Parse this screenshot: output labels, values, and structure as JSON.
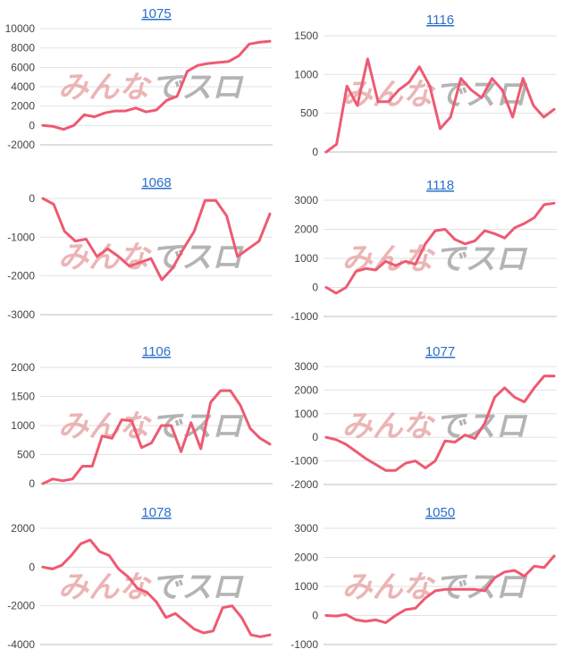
{
  "colors": {
    "line": "#ee5a72",
    "title": "#2a6fc9",
    "grid": "#e2e2e2",
    "text": "#444444"
  },
  "watermark": {
    "part_a": "みんな",
    "part_b": "でスロ"
  },
  "chart_data": [
    {
      "type": "line",
      "title": "1075",
      "ylim": [
        -2000,
        10000
      ],
      "yticks": [
        10000,
        8000,
        6000,
        4000,
        2000,
        0,
        -2000
      ],
      "tick_labels": [
        "10000",
        "8000",
        "6000",
        "4000",
        "2000",
        "0",
        "-2000"
      ],
      "values": [
        0,
        -100,
        -400,
        0,
        1100,
        900,
        1300,
        1500,
        1500,
        1800,
        1400,
        1600,
        2600,
        3000,
        5600,
        6200,
        6400,
        6500,
        6600,
        7200,
        8400,
        8600,
        8700
      ]
    },
    {
      "type": "line",
      "title": "1116",
      "ylim": [
        0,
        1500
      ],
      "yticks": [
        1500,
        1000,
        500,
        0
      ],
      "tick_labels": [
        "1500",
        "1000",
        "500",
        "0"
      ],
      "values": [
        0,
        100,
        850,
        600,
        1200,
        650,
        650,
        800,
        900,
        1100,
        850,
        300,
        450,
        950,
        800,
        700,
        950,
        800,
        450,
        950,
        600,
        450,
        550
      ]
    },
    {
      "type": "line",
      "title": "1068",
      "ylim": [
        -3000,
        0
      ],
      "yticks": [
        0,
        -1000,
        -2000,
        -3000
      ],
      "tick_labels": [
        "0",
        "-1000",
        "-2000",
        "-3000"
      ],
      "values": [
        0,
        -150,
        -850,
        -1100,
        -1050,
        -1500,
        -1300,
        -1500,
        -1750,
        -1650,
        -1550,
        -2100,
        -1800,
        -1300,
        -850,
        -50,
        -50,
        -450,
        -1500,
        -1300,
        -1100,
        -400
      ]
    },
    {
      "type": "line",
      "title": "1118",
      "ylim": [
        -1000,
        3000
      ],
      "yticks": [
        3000,
        2000,
        1000,
        0,
        -1000
      ],
      "tick_labels": [
        "3000",
        "2000",
        "1000",
        "0",
        "-1000"
      ],
      "values": [
        0,
        -200,
        0,
        550,
        650,
        600,
        900,
        750,
        900,
        800,
        1500,
        1950,
        2000,
        1650,
        1500,
        1600,
        1950,
        1850,
        1700,
        2050,
        2200,
        2400,
        2850,
        2900
      ]
    },
    {
      "type": "line",
      "title": "1106",
      "ylim": [
        0,
        2000
      ],
      "yticks": [
        2000,
        1500,
        1000,
        500,
        0
      ],
      "tick_labels": [
        "2000",
        "1500",
        "1000",
        "500",
        "0"
      ],
      "values": [
        0,
        80,
        50,
        80,
        300,
        300,
        820,
        780,
        1100,
        1080,
        620,
        700,
        1000,
        1000,
        550,
        1050,
        600,
        1400,
        1600,
        1600,
        1350,
        950,
        780,
        680
      ]
    },
    {
      "type": "line",
      "title": "1077",
      "ylim": [
        -2000,
        3000
      ],
      "yticks": [
        3000,
        2000,
        1000,
        0,
        -1000,
        -2000
      ],
      "tick_labels": [
        "3000",
        "2000",
        "1000",
        "0",
        "-1000",
        "-2000"
      ],
      "values": [
        0,
        -100,
        -300,
        -600,
        -900,
        -1150,
        -1400,
        -1400,
        -1100,
        -1000,
        -1300,
        -1000,
        -150,
        -200,
        100,
        -50,
        600,
        1700,
        2100,
        1700,
        1500,
        2100,
        2600,
        2600
      ]
    },
    {
      "type": "line",
      "title": "1078",
      "ylim": [
        -4000,
        2000
      ],
      "yticks": [
        2000,
        0,
        -2000,
        -4000
      ],
      "tick_labels": [
        "2000",
        "0",
        "-2000",
        "-4000"
      ],
      "values": [
        0,
        -100,
        100,
        600,
        1200,
        1400,
        800,
        600,
        -100,
        -500,
        -1100,
        -1300,
        -1800,
        -2600,
        -2400,
        -2800,
        -3200,
        -3400,
        -3300,
        -2100,
        -2000,
        -2600,
        -3500,
        -3600,
        -3500
      ]
    },
    {
      "type": "line",
      "title": "1050",
      "ylim": [
        -1000,
        3000
      ],
      "yticks": [
        3000,
        2000,
        1000,
        0,
        -1000
      ],
      "tick_labels": [
        "3000",
        "2000",
        "1000",
        "0",
        "-1000"
      ],
      "values": [
        0,
        -20,
        30,
        -150,
        -200,
        -150,
        -250,
        0,
        200,
        250,
        600,
        850,
        900,
        900,
        900,
        900,
        850,
        1300,
        1500,
        1550,
        1350,
        1700,
        1650,
        2050
      ]
    }
  ]
}
